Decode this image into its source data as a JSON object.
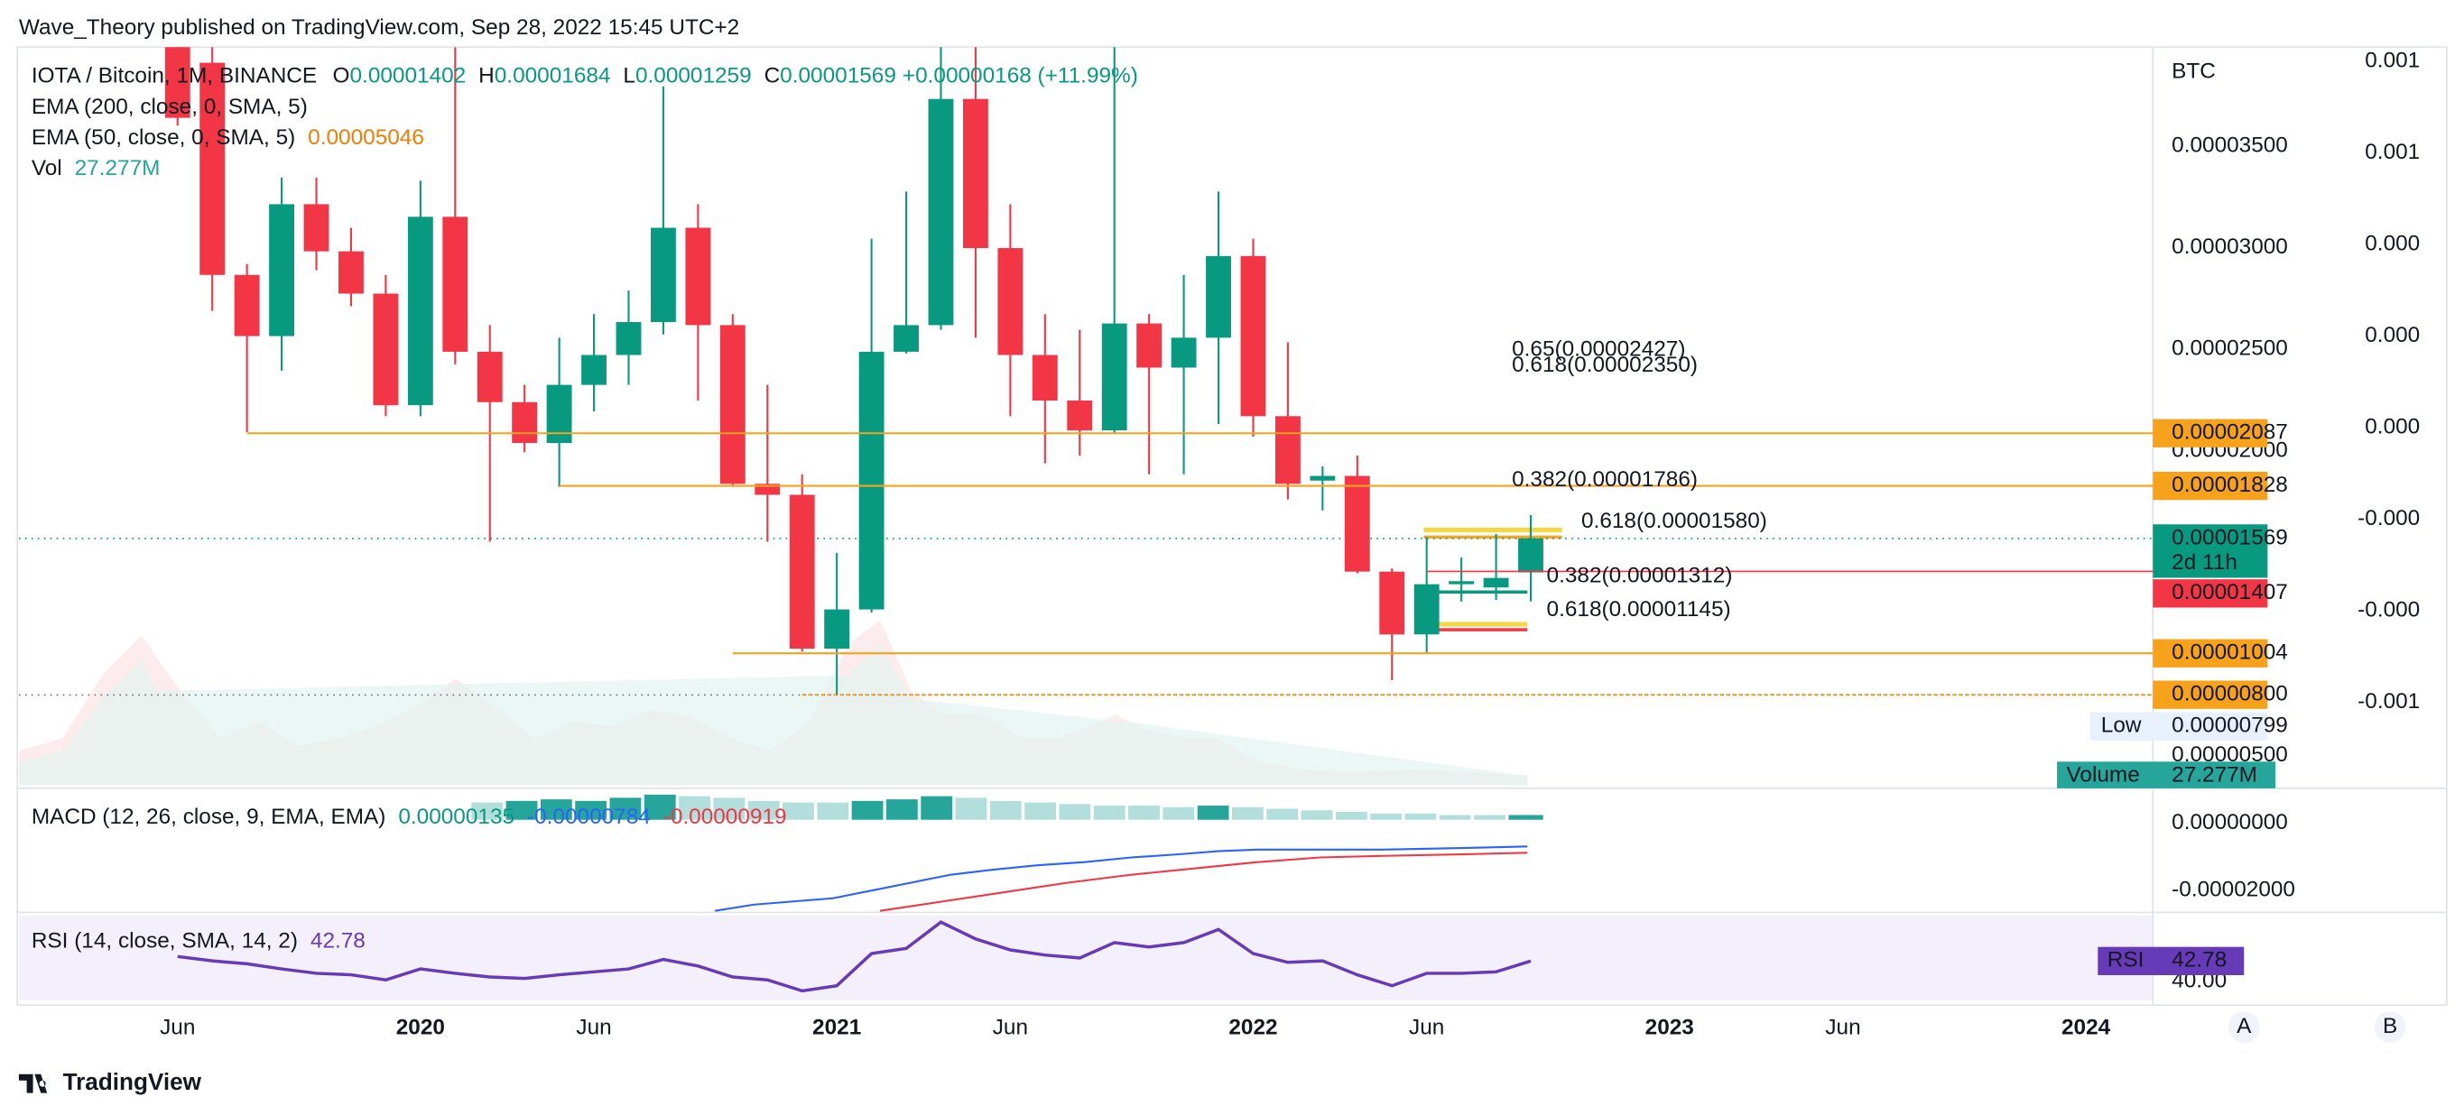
{
  "header": {
    "publisher": "Wave_Theory published on TradingView.com, Sep 28, 2022 15:45 UTC+2",
    "brand": "TradingView",
    "buttons": [
      "A",
      "B"
    ]
  },
  "chart_data": {
    "type": "candlestick",
    "title": "IOTA / Bitcoin, 1M, BINANCE",
    "y_unit": "BTC",
    "up_color": "#089981",
    "down_color": "#f23645",
    "x": [
      "2019-06",
      "2019-07",
      "2019-08",
      "2019-09",
      "2019-10",
      "2019-11",
      "2019-12",
      "2020-01",
      "2020-02",
      "2020-03",
      "2020-04",
      "2020-05",
      "2020-06",
      "2020-07",
      "2020-08",
      "2020-09",
      "2020-10",
      "2020-11",
      "2020-12",
      "2021-01",
      "2021-02",
      "2021-03",
      "2021-04",
      "2021-05",
      "2021-06",
      "2021-07",
      "2021-08",
      "2021-09",
      "2021-10",
      "2021-11",
      "2021-12",
      "2022-01",
      "2022-02",
      "2022-03",
      "2022-04",
      "2022-05",
      "2022-06",
      "2022-07",
      "2022-08",
      "2022-09"
    ],
    "open": [
      4.103e-05,
      3.91e-05,
      2.866e-05,
      2.565e-05,
      3.214e-05,
      2.982e-05,
      2.774e-05,
      2.225e-05,
      3.152e-05,
      2.488e-05,
      2.24e-05,
      2.039e-05,
      2.325e-05,
      2.472e-05,
      2.634e-05,
      3.098e-05,
      2.619e-05,
      1.838e-05,
      1.784e-05,
      1.027e-05,
      1.22e-05,
      2.488e-05,
      2.619e-05,
      3.732e-05,
      2.998e-05,
      2.472e-05,
      2.248e-05,
      2.101e-05,
      2.627e-05,
      2.41e-05,
      2.557e-05,
      2.959e-05,
      2.171e-05,
      1.854e-05,
      1.877e-05,
      1.406e-05,
      1.097e-05,
      1.344e-05,
      1.328e-05,
      1.402e-05
    ],
    "high": [
      4.18e-05,
      4.025e-05,
      2.92e-05,
      3.345e-05,
      3.345e-05,
      3.098e-05,
      2.866e-05,
      3.33e-05,
      3.987e-05,
      2.619e-05,
      2.325e-05,
      2.557e-05,
      2.673e-05,
      2.789e-05,
      3.794e-05,
      3.214e-05,
      2.673e-05,
      2.325e-05,
      1.885e-05,
      1.498e-05,
      3.044e-05,
      3.276e-05,
      4.002e-05,
      4.002e-05,
      3.214e-05,
      2.673e-05,
      2.596e-05,
      4.002e-05,
      2.673e-05,
      2.866e-05,
      3.276e-05,
      3.044e-05,
      2.534e-05,
      1.924e-05,
      1.977e-05,
      1.421e-05,
      1.576e-05,
      1.475e-05,
      1.591e-05,
      1.684e-05
    ],
    "low": [
      3.6e-05,
      2.689e-05,
      2.093e-05,
      2.395e-05,
      2.889e-05,
      2.712e-05,
      2.171e-05,
      2.171e-05,
      2.426e-05,
      1.553e-05,
      1.993e-05,
      1.823e-05,
      2.194e-05,
      2.325e-05,
      2.573e-05,
      2.248e-05,
      1.823e-05,
      1.553e-05,
      1.012e-05,
      7.99e-06,
      1.205e-05,
      2.48e-05,
      2.596e-05,
      2.557e-05,
      2.171e-05,
      1.939e-05,
      1.977e-05,
      2.086e-05,
      1.885e-05,
      1.885e-05,
      2.132e-05,
      2.07e-05,
      1.761e-05,
      1.707e-05,
      1.398e-05,
      8.72e-06,
      1.004e-05,
      1.259e-05,
      1.267e-05,
      1.259e-05
    ],
    "close": [
      3.639e-05,
      2.866e-05,
      2.565e-05,
      3.214e-05,
      2.982e-05,
      2.774e-05,
      2.225e-05,
      3.152e-05,
      2.488e-05,
      2.24e-05,
      2.039e-05,
      2.325e-05,
      2.472e-05,
      2.634e-05,
      3.098e-05,
      2.619e-05,
      1.838e-05,
      1.784e-05,
      1.027e-05,
      1.22e-05,
      2.488e-05,
      2.619e-05,
      3.732e-05,
      2.998e-05,
      2.472e-05,
      2.248e-05,
      2.101e-05,
      2.627e-05,
      2.41e-05,
      2.557e-05,
      2.959e-05,
      2.171e-05,
      1.838e-05,
      1.877e-05,
      1.406e-05,
      1.097e-05,
      1.344e-05,
      1.359e-05,
      1.375e-05,
      1.569e-05
    ],
    "ylim": [
      3.55e-06,
      3.987e-05
    ],
    "yticks": [
      {
        "value": 5e-06,
        "label": "0.00000500"
      },
      {
        "value": 2e-05,
        "label": "0.00002000"
      },
      {
        "value": 2.5e-05,
        "label": "0.00002500"
      },
      {
        "value": 3e-05,
        "label": "0.00003000"
      },
      {
        "value": 3.5e-05,
        "label": "0.00003500"
      }
    ],
    "xticks": [
      {
        "value": "2019-06",
        "label": "Jun"
      },
      {
        "value": "2020-01",
        "label": "2020"
      },
      {
        "value": "2020-06",
        "label": "Jun"
      },
      {
        "value": "2021-01",
        "label": "2021"
      },
      {
        "value": "2021-06",
        "label": "Jun"
      },
      {
        "value": "2022-01",
        "label": "2022"
      },
      {
        "value": "2022-06",
        "label": "Jun"
      },
      {
        "value": "2023-01",
        "label": "2023"
      },
      {
        "value": "2023-06",
        "label": "Jun"
      },
      {
        "value": "2024-01",
        "label": "2024"
      }
    ],
    "ohlc_labels": [
      "O",
      "H",
      "L",
      "C"
    ],
    "change": "+0.00000168 (+11.99%)",
    "indicators": [
      {
        "name": "EMA (200, close, 0, SMA, 5)"
      },
      {
        "name": "EMA (50, close, 0, SMA, 5)",
        "value": 5.046e-05
      },
      {
        "name": "Vol",
        "label": "27.277M"
      }
    ],
    "levels": [
      {
        "value": 2.087e-05,
        "label": "0.00002087",
        "start": "2019-08"
      },
      {
        "value": 1.828e-05,
        "label": "0.00001828",
        "start": "2020-05"
      },
      {
        "value": 1.004e-05,
        "label": "0.00001004",
        "start": "2020-10"
      },
      {
        "value": 8e-06,
        "label": "0.00000800",
        "start": "2020-12"
      }
    ],
    "countdown": "2d 11h",
    "marker": {
      "value": 1.407e-05,
      "label": "0.00001407",
      "start": "2022-06"
    },
    "low_tag": {
      "name": "Low",
      "value": 7.99e-06,
      "label": "0.00000799"
    },
    "volume_tag": {
      "name": "Volume",
      "label": "27.277M"
    },
    "fib_labels": [
      {
        "text": "0.65(0.00002427)",
        "value": 2.427e-05,
        "start": "2022-09",
        "color": "#f6d743"
      },
      {
        "text": "0.618(0.00002350)",
        "value": 2.35e-05,
        "start": "2022-09",
        "color": "#f5a623"
      },
      {
        "text": "0.382(0.00001786)",
        "value": 1.786e-05,
        "start": "2022-09",
        "color": "#6aa84f"
      },
      {
        "text": "0.618(0.00001580)",
        "value": 1.58e-05,
        "start": "2022-11",
        "color": "#f5a623"
      },
      {
        "text": "0.382(0.00001312)",
        "value": 1.312e-05,
        "start": "2022-10",
        "color": "#6aa84f"
      },
      {
        "text": "0.618(0.00001145)",
        "value": 1.145e-05,
        "start": "2022-10",
        "color": "#f5a623"
      }
    ],
    "secondary_scale": [
      "0.001",
      "0.001",
      "0.000",
      "0.000",
      "0.000",
      "-0.000",
      "-0.000",
      "-0.001"
    ],
    "macd": {
      "title": "MACD (12, 26, close, 9, EMA, EMA)",
      "values": [
        1.35e-06,
        -7.84e-06,
        -9.19e-06
      ],
      "value_labels": [
        "0.00000135",
        "-0.00000784",
        "-0.00000919"
      ],
      "colors": [
        "#089981",
        "#2962ff",
        "#f23645"
      ],
      "ylim": [
        -2.66e-05,
        1e-05
      ],
      "yticks": [
        {
          "value": 0,
          "label": "0.00000000"
        },
        {
          "value": -2e-05,
          "label": "-0.00002000"
        }
      ]
    },
    "rsi": {
      "title": "RSI (14, close, SMA, 14, 2)",
      "tag": "RSI",
      "color": "#673ab7",
      "ylim": [
        37.4,
        49.0
      ],
      "yticks": [
        {
          "value": 40,
          "label": "40.00"
        }
      ],
      "values": [
        43.4,
        42.8,
        42.4,
        41.7,
        41.1,
        40.9,
        40.2,
        41.7,
        41.1,
        40.6,
        40.4,
        40.9,
        41.3,
        41.7,
        43.0,
        42.1,
        40.6,
        40.2,
        38.7,
        39.4,
        43.8,
        44.5,
        48.1,
        45.8,
        44.3,
        43.6,
        43.2,
        45.3,
        44.7,
        45.3,
        47.1,
        43.8,
        42.6,
        42.8,
        40.9,
        39.4,
        41.1,
        41.1,
        41.3,
        42.78
      ]
    }
  }
}
